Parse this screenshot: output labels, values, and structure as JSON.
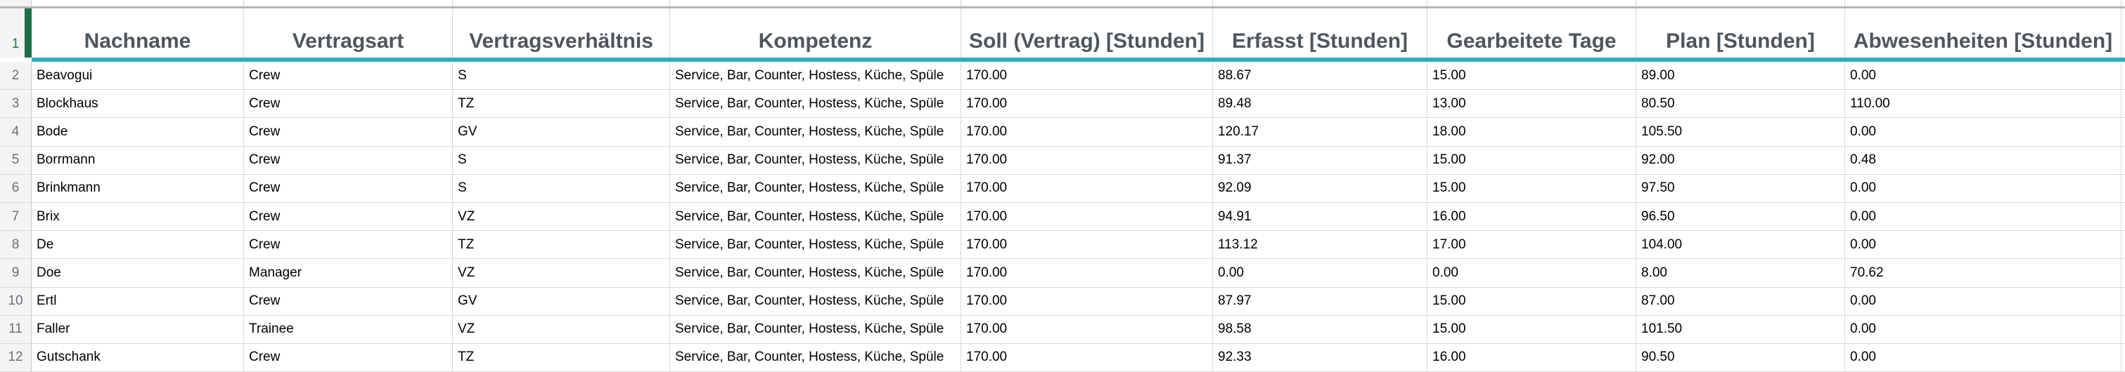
{
  "sheet": {
    "selected_row_number": "1",
    "columns": [
      "Nachname",
      "Vertragsart",
      "Vertragsverhältnis",
      "Kompetenz",
      "Soll (Vertrag) [Stunden]",
      "Erfasst [Stunden]",
      "Gearbeitete Tage",
      "Plan [Stunden]",
      "Abwesenheiten [Stunden]"
    ],
    "rows": [
      {
        "num": "2",
        "cells": [
          "Beavogui",
          "Crew",
          "S",
          "Service, Bar, Counter, Hostess, Küche, Spüle",
          "170.00",
          "88.67",
          "15.00",
          "89.00",
          "0.00"
        ]
      },
      {
        "num": "3",
        "cells": [
          "Blockhaus",
          "Crew",
          "TZ",
          "Service, Bar, Counter, Hostess, Küche, Spüle",
          "170.00",
          "89.48",
          "13.00",
          "80.50",
          "110.00"
        ]
      },
      {
        "num": "4",
        "cells": [
          "Bode",
          "Crew",
          "GV",
          "Service, Bar, Counter, Hostess, Küche, Spüle",
          "170.00",
          "120.17",
          "18.00",
          "105.50",
          "0.00"
        ]
      },
      {
        "num": "5",
        "cells": [
          "Borrmann",
          "Crew",
          "S",
          "Service, Bar, Counter, Hostess, Küche, Spüle",
          "170.00",
          "91.37",
          "15.00",
          "92.00",
          "0.48"
        ]
      },
      {
        "num": "6",
        "cells": [
          "Brinkmann",
          "Crew",
          "S",
          "Service, Bar, Counter, Hostess, Küche, Spüle",
          "170.00",
          "92.09",
          "15.00",
          "97.50",
          "0.00"
        ]
      },
      {
        "num": "7",
        "cells": [
          "Brix",
          "Crew",
          "VZ",
          "Service, Bar, Counter, Hostess, Küche, Spüle",
          "170.00",
          "94.91",
          "16.00",
          "96.50",
          "0.00"
        ]
      },
      {
        "num": "8",
        "cells": [
          "De",
          "Crew",
          "TZ",
          "Service, Bar, Counter, Hostess, Küche, Spüle",
          "170.00",
          "113.12",
          "17.00",
          "104.00",
          "0.00"
        ]
      },
      {
        "num": "9",
        "cells": [
          "Doe",
          "Manager",
          "VZ",
          "Service, Bar, Counter, Hostess, Küche, Spüle",
          "170.00",
          "0.00",
          "0.00",
          "8.00",
          "70.62"
        ]
      },
      {
        "num": "10",
        "cells": [
          "Ertl",
          "Crew",
          "GV",
          "Service, Bar, Counter, Hostess, Küche, Spüle",
          "170.00",
          "87.97",
          "15.00",
          "87.00",
          "0.00"
        ]
      },
      {
        "num": "11",
        "cells": [
          "Faller",
          "Trainee",
          "VZ",
          "Service, Bar, Counter, Hostess, Küche, Spüle",
          "170.00",
          "98.58",
          "15.00",
          "101.50",
          "0.00"
        ]
      },
      {
        "num": "12",
        "cells": [
          "Gutschank",
          "Crew",
          "TZ",
          "Service, Bar, Counter, Hostess, Küche, Spüle",
          "170.00",
          "92.33",
          "16.00",
          "90.50",
          "0.00"
        ]
      }
    ],
    "colors": {
      "accent_teal": "#2fafbd",
      "selection_green": "#217346",
      "selection_bar_green": "#1e6e47",
      "header_text": "#4d565c",
      "gridline": "#d9d9d9"
    }
  }
}
